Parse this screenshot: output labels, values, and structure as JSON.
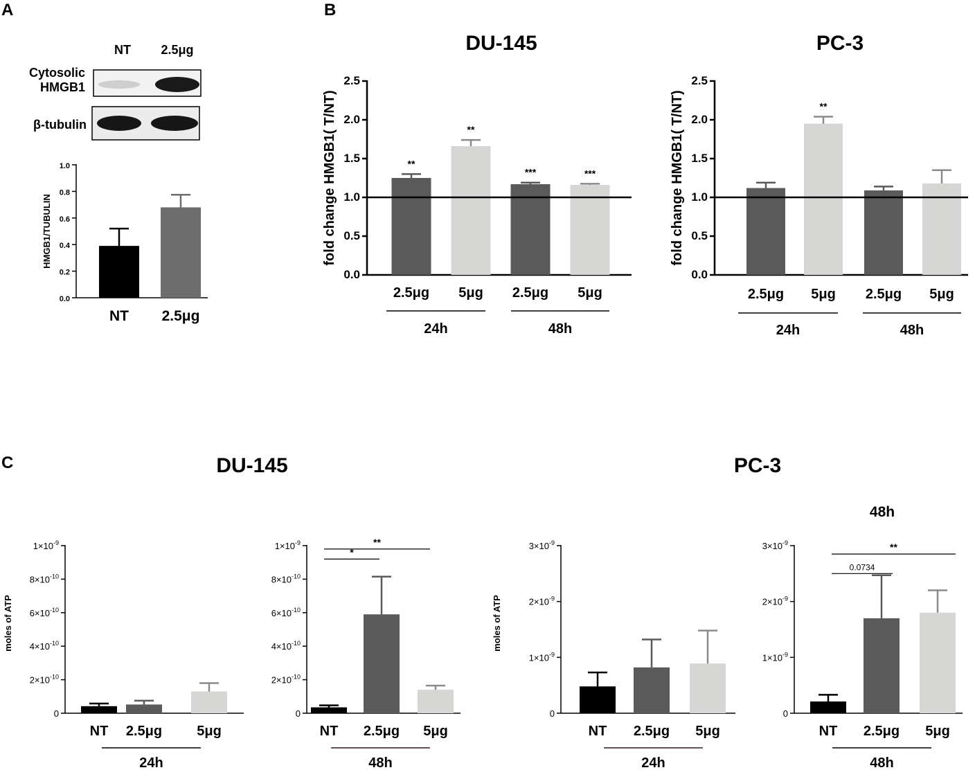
{
  "panels": {
    "A": {
      "letter": "A",
      "blot": {
        "lanes": [
          "NT",
          "2.5μg"
        ],
        "rows": [
          {
            "label_lines": [
              "Cytosolic",
              "HMGB1"
            ],
            "intensity": [
              0.15,
              0.95
            ]
          },
          {
            "label_lines": [
              "β-tubulin"
            ],
            "intensity": [
              0.9,
              0.9
            ]
          }
        ]
      }
    },
    "B": {
      "letter": "B"
    },
    "C": {
      "letter": "C",
      "titles": [
        "DU-145",
        "PC-3"
      ],
      "pc3_48h_title": "48h"
    }
  },
  "chart_data": [
    {
      "id": "A-bar",
      "type": "bar",
      "title": "",
      "ylabel": "HMGB1/TUBULIN",
      "ylim": [
        0,
        1.0
      ],
      "yticks": [
        0,
        0.2,
        0.4,
        0.6,
        0.8,
        1.0
      ],
      "ytick_labels": [
        "0.0",
        "0.2",
        "0.4",
        "0.6",
        "0.8",
        "1.0"
      ],
      "categories": [
        "NT",
        "2.5μg"
      ],
      "values": [
        0.39,
        0.68
      ],
      "errors": [
        0.13,
        0.095
      ],
      "colors": [
        "#000000",
        "#6d6d6d"
      ],
      "significance": [
        "",
        ""
      ],
      "groups": [],
      "reference_line": null
    },
    {
      "id": "B-DU145",
      "type": "bar",
      "title": "DU-145",
      "ylabel": "fold change HMGB1( T/NT)",
      "ylim": [
        0,
        2.5
      ],
      "yticks": [
        0,
        0.5,
        1.0,
        1.5,
        2.0,
        2.5
      ],
      "ytick_labels": [
        "0.0",
        "0.5",
        "1.0",
        "1.5",
        "2.0",
        "2.5"
      ],
      "categories": [
        "2.5μg",
        "5μg",
        "2.5μg",
        "5μg"
      ],
      "values": [
        1.25,
        1.66,
        1.17,
        1.16
      ],
      "errors": [
        0.05,
        0.08,
        0.02,
        0.015
      ],
      "colors": [
        "#5a5a5a",
        "#d6d6d4",
        "#5a5a5a",
        "#d6d6d4"
      ],
      "significance": [
        "**",
        "**",
        "***",
        "***"
      ],
      "groups": [
        {
          "label": "24h",
          "span": [
            0,
            1
          ]
        },
        {
          "label": "48h",
          "span": [
            2,
            3
          ]
        }
      ],
      "reference_line": 1.0
    },
    {
      "id": "B-PC3",
      "type": "bar",
      "title": "PC-3",
      "ylabel": "fold change HMGB1( T/NT)",
      "ylim": [
        0,
        2.5
      ],
      "yticks": [
        0,
        0.5,
        1.0,
        1.5,
        2.0,
        2.5
      ],
      "ytick_labels": [
        "0.0",
        "0.5",
        "1.0",
        "1.5",
        "2.0",
        "2.5"
      ],
      "categories": [
        "2.5μg",
        "5μg",
        "2.5μg",
        "5μg"
      ],
      "values": [
        1.12,
        1.95,
        1.09,
        1.18
      ],
      "errors": [
        0.07,
        0.09,
        0.05,
        0.17
      ],
      "colors": [
        "#5a5a5a",
        "#d6d6d4",
        "#5a5a5a",
        "#d6d6d4"
      ],
      "significance": [
        "",
        "**",
        "",
        ""
      ],
      "groups": [
        {
          "label": "24h",
          "span": [
            0,
            1
          ]
        },
        {
          "label": "48h",
          "span": [
            2,
            3
          ]
        }
      ],
      "reference_line": 1.0
    },
    {
      "id": "C-DU145-24h",
      "type": "bar",
      "title": "",
      "ylabel": "moles of ATP",
      "ylim": [
        0,
        1e-09
      ],
      "yticks": [
        0,
        2e-10,
        4e-10,
        6e-10,
        8e-10,
        1e-09
      ],
      "ytick_labels": [
        [
          "0",
          ""
        ],
        [
          "2×10",
          "-10"
        ],
        [
          "4×10",
          "-10"
        ],
        [
          "6×10",
          "-10"
        ],
        [
          "8×10",
          "-10"
        ],
        [
          "1×10",
          "-9"
        ]
      ],
      "categories": [
        "NT",
        "2.5μg",
        "5μg"
      ],
      "values": [
        4.2e-11,
        5.2e-11,
        1.3e-10
      ],
      "errors": [
        1.6e-11,
        2.3e-11,
        5e-11
      ],
      "colors": [
        "#000000",
        "#5a5a5a",
        "#d6d6d4"
      ],
      "significance": [
        "",
        "",
        ""
      ],
      "groups": [
        {
          "label": "24h",
          "span": [
            0,
            2
          ]
        }
      ],
      "brackets": []
    },
    {
      "id": "C-DU145-48h",
      "type": "bar",
      "title": "",
      "ylabel": "",
      "ylim": [
        0,
        1e-09
      ],
      "yticks": [
        0,
        2e-10,
        4e-10,
        6e-10,
        8e-10,
        1e-09
      ],
      "ytick_labels": [
        [
          "0",
          ""
        ],
        [
          "2×10",
          "-10"
        ],
        [
          "4×10",
          "-10"
        ],
        [
          "6×10",
          "-10"
        ],
        [
          "8×10",
          "-10"
        ],
        [
          "1×10",
          "-9"
        ]
      ],
      "categories": [
        "NT",
        "2.5μg",
        "5μg"
      ],
      "values": [
        3.5e-11,
        5.9e-10,
        1.4e-10
      ],
      "errors": [
        1.2e-11,
        2.25e-10,
        2.5e-11
      ],
      "colors": [
        "#000000",
        "#5a5a5a",
        "#d6d6d4"
      ],
      "significance": [
        "",
        "",
        ""
      ],
      "groups": [
        {
          "label": "48h",
          "span": [
            0,
            2
          ]
        }
      ],
      "brackets": [
        {
          "from": 0,
          "to": 1,
          "label": "*",
          "y": 9.2e-10
        },
        {
          "from": 0,
          "to": 2,
          "label": "**",
          "y": 9.8e-10
        }
      ]
    },
    {
      "id": "C-PC3-24h",
      "type": "bar",
      "title": "",
      "ylabel": "moles of ATP",
      "ylim": [
        0,
        3e-09
      ],
      "yticks": [
        0,
        1e-09,
        2e-09,
        3e-09
      ],
      "ytick_labels": [
        [
          "0",
          ""
        ],
        [
          "1×10",
          "-9"
        ],
        [
          "2×10",
          "-9"
        ],
        [
          "3×10",
          "-9"
        ]
      ],
      "categories": [
        "NT",
        "2.5μg",
        "5μg"
      ],
      "values": [
        4.8e-10,
        8.2e-10,
        8.9e-10
      ],
      "errors": [
        2.5e-10,
        5e-10,
        5.9e-10
      ],
      "colors": [
        "#000000",
        "#5a5a5a",
        "#d6d6d4"
      ],
      "significance": [
        "",
        "",
        ""
      ],
      "groups": [
        {
          "label": "24h",
          "span": [
            0,
            2
          ]
        }
      ],
      "brackets": []
    },
    {
      "id": "C-PC3-48h",
      "type": "bar",
      "title": "48h",
      "ylabel": "",
      "ylim": [
        0,
        3e-09
      ],
      "yticks": [
        0,
        1e-09,
        2e-09,
        3e-09
      ],
      "ytick_labels": [
        [
          "0",
          ""
        ],
        [
          "1×10",
          "-9"
        ],
        [
          "2×10",
          "-9"
        ],
        [
          "3×10",
          "-9"
        ]
      ],
      "categories": [
        "NT",
        "2.5μg",
        "5μg"
      ],
      "values": [
        2.1e-10,
        1.7e-09,
        1.8e-09
      ],
      "errors": [
        1.2e-10,
        7.7e-10,
        4e-10
      ],
      "colors": [
        "#000000",
        "#5a5a5a",
        "#d6d6d4"
      ],
      "significance": [
        "",
        "",
        ""
      ],
      "groups": [
        {
          "label": "48h",
          "span": [
            0,
            2
          ]
        }
      ],
      "brackets": [
        {
          "from": 0,
          "to": 1,
          "label": "0.0734",
          "y": 2.5e-09
        },
        {
          "from": 0,
          "to": 2,
          "label": "**",
          "y": 2.85e-09
        }
      ]
    }
  ]
}
